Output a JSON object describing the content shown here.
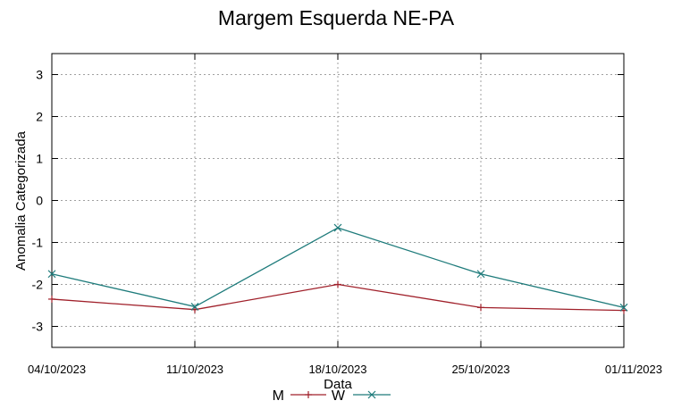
{
  "chart_data": {
    "type": "line",
    "title": "Margem Esquerda NE-PA",
    "xlabel": "Data",
    "ylabel": "Anomalia Categorizada",
    "categories": [
      "04/10/2023",
      "11/10/2023",
      "18/10/2023",
      "25/10/2023",
      "01/11/2023"
    ],
    "yticks": [
      3,
      2,
      1,
      0,
      -1,
      -2,
      -3
    ],
    "ylim": [
      -3.5,
      3.5
    ],
    "grid": true,
    "legend_position": "bottom",
    "series": [
      {
        "name": "M",
        "color": "#a0202a",
        "marker": "plus",
        "values": [
          -2.35,
          -2.6,
          -2.0,
          -2.55,
          -2.62
        ]
      },
      {
        "name": "W",
        "color": "#1e7b7b",
        "marker": "cross",
        "values": [
          -1.75,
          -2.53,
          -0.65,
          -1.75,
          -2.55
        ]
      }
    ]
  }
}
